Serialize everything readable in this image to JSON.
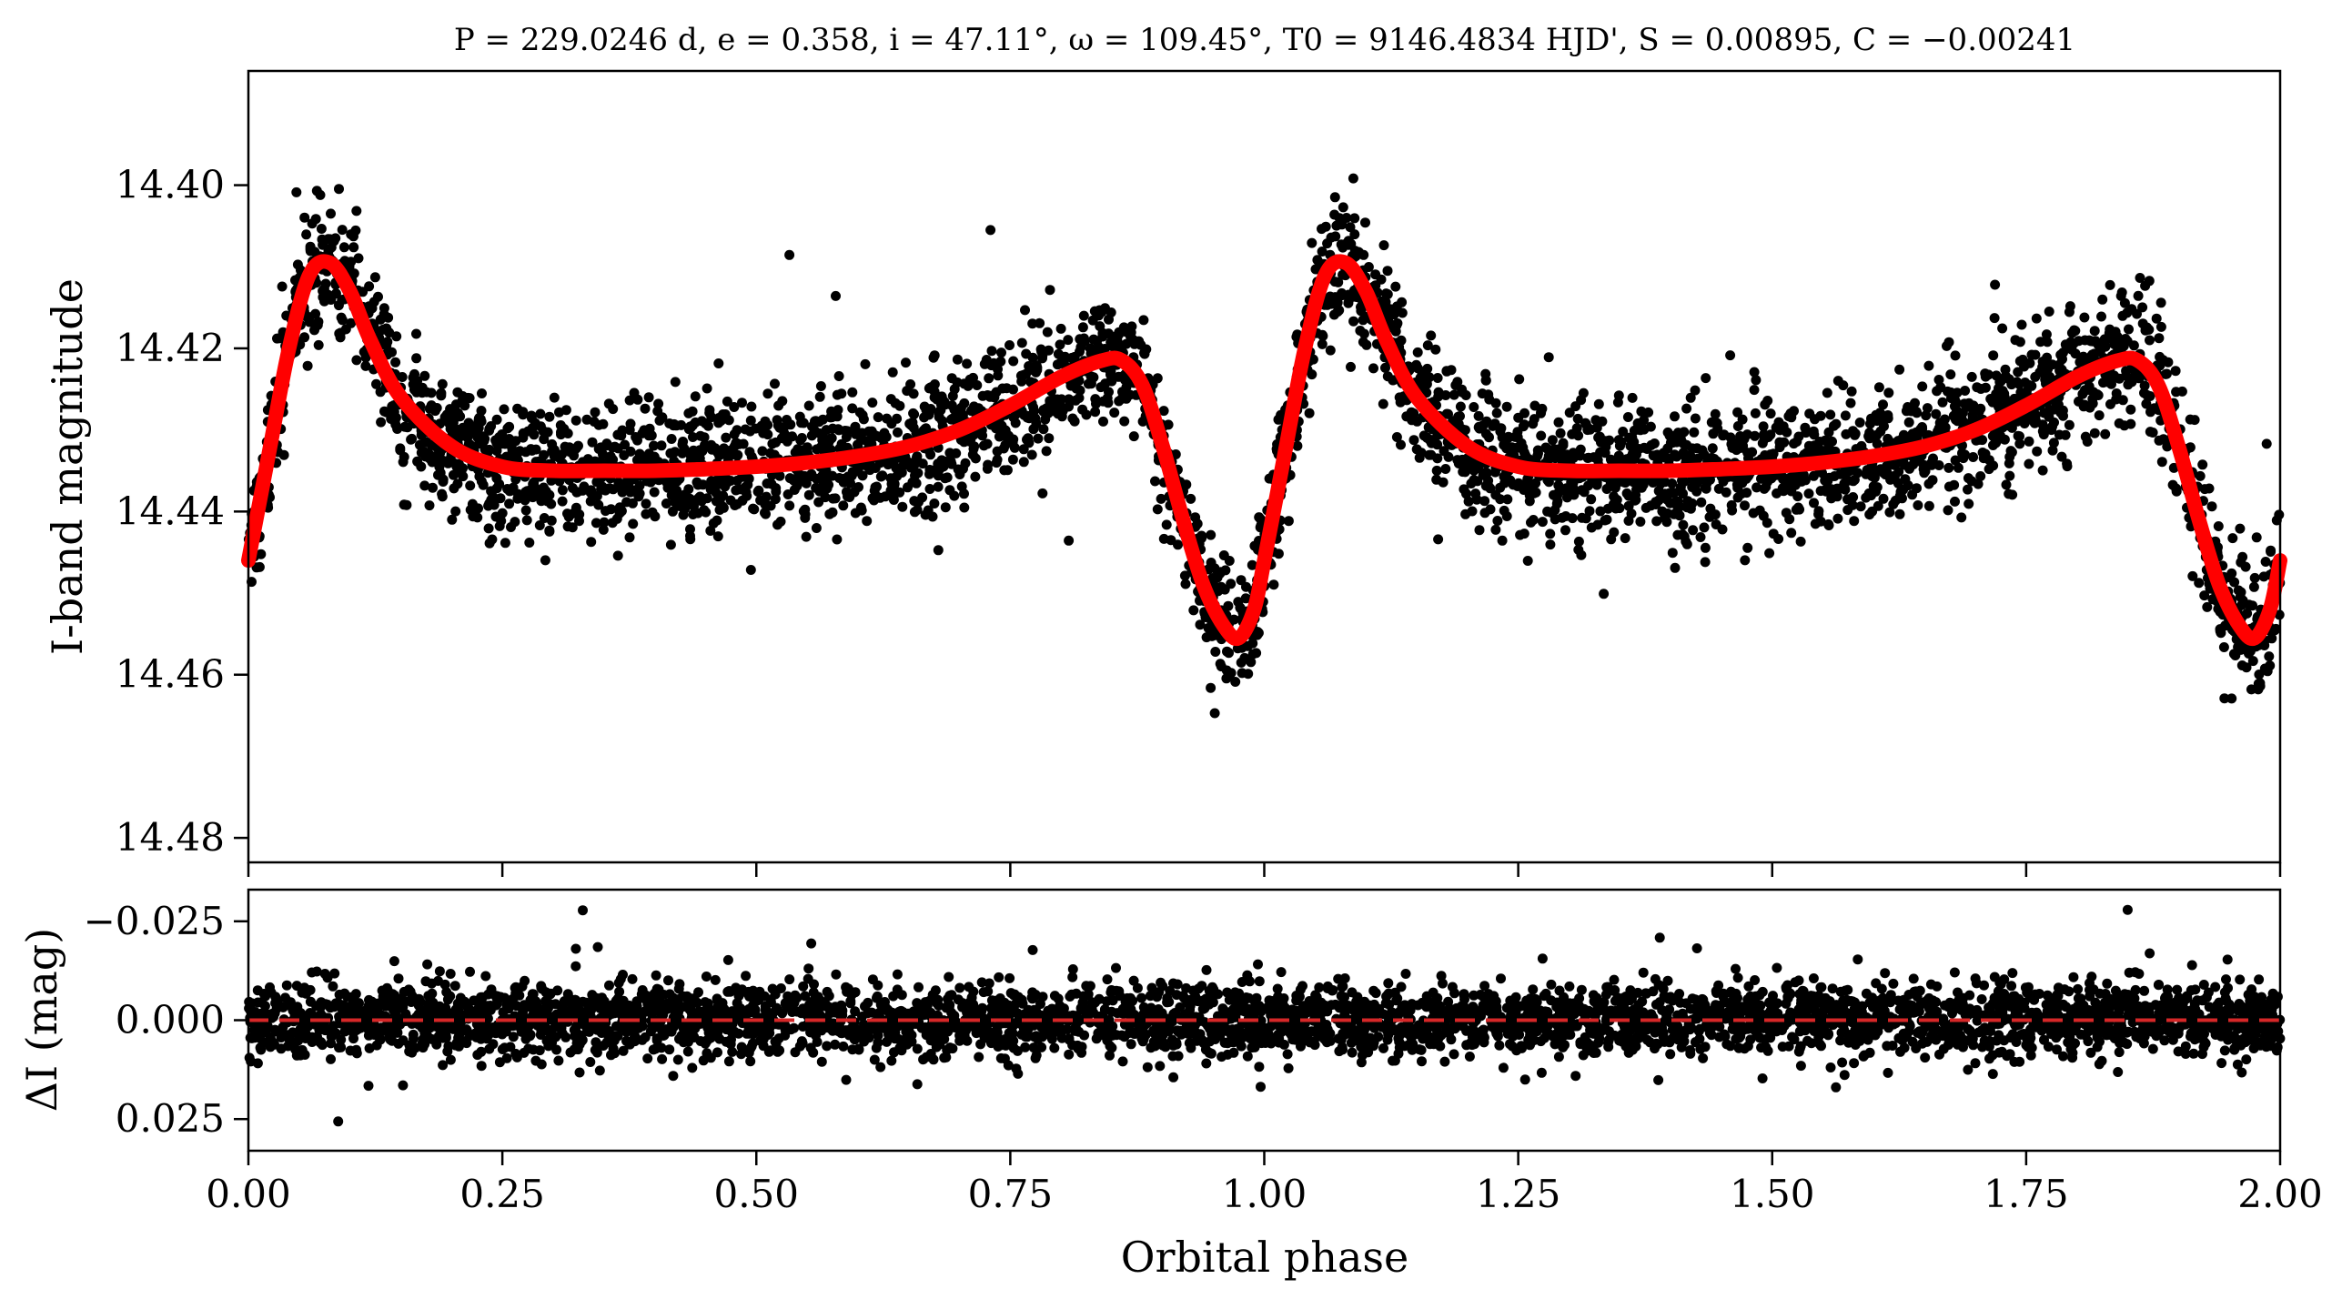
{
  "title": "P = 229.0246 d, e = 0.358, i = 47.11°, ω = 109.45°, T0 = 9146.4834 HJD', S = 0.00895, C = −0.00241",
  "chart_data": [
    {
      "panel": "light-curve",
      "type": "scatter",
      "ylabel": "I-band magnitude",
      "xlim": [
        0.0,
        2.0
      ],
      "ylim": [
        14.483,
        14.386
      ],
      "y_inverted": true,
      "y_ticks": [
        14.4,
        14.42,
        14.44,
        14.46,
        14.48
      ],
      "y_tick_labels": [
        "14.40",
        "14.42",
        "14.44",
        "14.46",
        "14.48"
      ],
      "grid": false,
      "series": [
        {
          "kind": "points",
          "color": "#000000",
          "approx_count": 4000,
          "noise_sigma_mag": 0.004
        },
        {
          "kind": "model-line",
          "color": "#ff0000",
          "x": [
            0.0,
            0.02,
            0.04,
            0.06,
            0.08,
            0.1,
            0.12,
            0.15,
            0.2,
            0.25,
            0.3,
            0.35,
            0.4,
            0.45,
            0.5,
            0.55,
            0.6,
            0.65,
            0.7,
            0.75,
            0.8,
            0.84,
            0.86,
            0.88,
            0.9,
            0.92,
            0.94,
            0.96,
            0.975,
            0.99,
            1.0,
            1.02,
            1.04,
            1.06,
            1.08,
            1.1,
            1.12,
            1.15,
            1.2,
            1.25,
            1.3,
            1.35,
            1.4,
            1.45,
            1.5,
            1.55,
            1.6,
            1.65,
            1.7,
            1.75,
            1.8,
            1.84,
            1.86,
            1.88,
            1.9,
            1.92,
            1.94,
            1.96,
            1.975,
            1.99,
            2.0
          ],
          "y": [
            14.446,
            14.433,
            14.42,
            14.411,
            14.4095,
            14.413,
            14.419,
            14.426,
            14.432,
            14.4345,
            14.435,
            14.435,
            14.435,
            14.4348,
            14.4345,
            14.434,
            14.4332,
            14.432,
            14.43,
            14.427,
            14.4235,
            14.4215,
            14.4215,
            14.4245,
            14.432,
            14.441,
            14.449,
            14.454,
            14.4555,
            14.452,
            14.446,
            14.433,
            14.42,
            14.411,
            14.4095,
            14.413,
            14.419,
            14.426,
            14.432,
            14.4345,
            14.435,
            14.435,
            14.435,
            14.4348,
            14.4345,
            14.434,
            14.4332,
            14.432,
            14.43,
            14.427,
            14.4235,
            14.4215,
            14.4215,
            14.4245,
            14.432,
            14.441,
            14.449,
            14.454,
            14.4555,
            14.452,
            14.446
          ]
        }
      ]
    },
    {
      "panel": "residuals",
      "type": "scatter",
      "xlabel": "Orbital phase",
      "ylabel": "ΔI (mag)",
      "xlim": [
        0.0,
        2.0
      ],
      "ylim": [
        0.033,
        -0.033
      ],
      "y_inverted": true,
      "y_ticks": [
        -0.025,
        0.0,
        0.025
      ],
      "y_tick_labels": [
        "−0.025",
        "0.000",
        "0.025"
      ],
      "x_ticks": [
        0.0,
        0.25,
        0.5,
        0.75,
        1.0,
        1.25,
        1.5,
        1.75,
        2.0
      ],
      "x_tick_labels": [
        "0.00",
        "0.25",
        "0.50",
        "0.75",
        "1.00",
        "1.25",
        "1.50",
        "1.75",
        "2.00"
      ],
      "grid": false,
      "series": [
        {
          "kind": "points",
          "color": "#000000",
          "approx_count": 4000,
          "noise_sigma_mag": 0.0045
        },
        {
          "kind": "zero-line",
          "color": "#d62728",
          "style": "dashed",
          "y": 0.0
        }
      ]
    }
  ]
}
